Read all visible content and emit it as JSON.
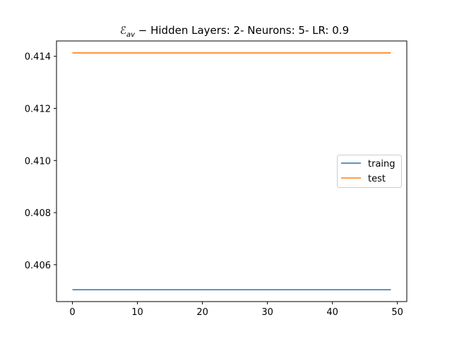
{
  "chart_data": {
    "type": "line",
    "title": "ℰav − Hidden Layers: 2- Neurons: 5- LR: 0.9",
    "title_main": "ℰ",
    "title_sub": "av",
    "title_rest": " − Hidden Layers: 2- Neurons: 5- LR: 0.9",
    "xlabel": "",
    "ylabel": "",
    "x_range": [
      0,
      49
    ],
    "xlim": [
      -2.45,
      51.45
    ],
    "ylim": [
      0.404586,
      0.414588
    ],
    "x_ticks": [
      0,
      10,
      20,
      30,
      40,
      50
    ],
    "x_tick_labels": [
      "0",
      "10",
      "20",
      "30",
      "40",
      "50"
    ],
    "y_ticks": [
      0.406,
      0.408,
      0.41,
      0.412,
      0.414
    ],
    "y_tick_labels": [
      "0.406",
      "0.408",
      "0.410",
      "0.412",
      "0.414"
    ],
    "grid": false,
    "legend_position": "center-right",
    "series": [
      {
        "name": "traing",
        "color": "#1f77b4",
        "x_start": 0,
        "x_end": 49,
        "value": 0.40504
      },
      {
        "name": "test",
        "color": "#ff7f0e",
        "x_start": 0,
        "x_end": 49,
        "value": 0.41413
      }
    ]
  }
}
